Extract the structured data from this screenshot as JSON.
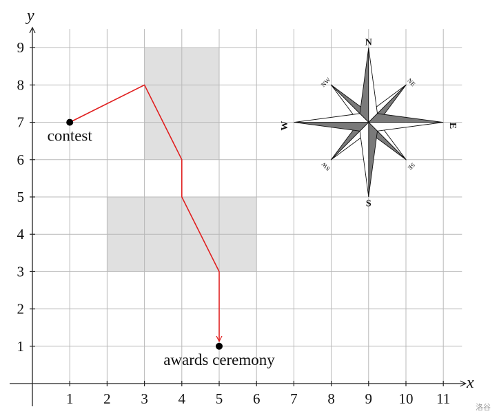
{
  "axes": {
    "x_label": "x",
    "y_label": "y",
    "x_ticks": [
      "1",
      "2",
      "3",
      "4",
      "5",
      "6",
      "7",
      "8",
      "9",
      "10",
      "11"
    ],
    "y_ticks": [
      "1",
      "2",
      "3",
      "4",
      "5",
      "6",
      "7",
      "8",
      "9"
    ],
    "grid": true,
    "xlim": [
      0,
      11.5
    ],
    "ylim": [
      0,
      9.5
    ]
  },
  "shaded_regions": [
    {
      "x": [
        3,
        5
      ],
      "y": [
        6,
        9
      ]
    },
    {
      "x": [
        2,
        6
      ],
      "y": [
        3,
        5
      ]
    }
  ],
  "route": {
    "color": "#e02020",
    "points": [
      [
        1,
        7
      ],
      [
        3,
        8
      ],
      [
        4,
        6
      ],
      [
        4,
        5
      ],
      [
        5,
        3
      ],
      [
        5,
        1
      ]
    ]
  },
  "places": [
    {
      "label": "contest",
      "x": 1,
      "y": 7
    },
    {
      "label": "awards ceremony",
      "x": 5,
      "y": 1
    }
  ],
  "compass": {
    "center": {
      "x": 9,
      "y": 7
    },
    "N": "N",
    "S": "S",
    "E": "E",
    "W": "W",
    "NE": "NE",
    "NW": "NW",
    "SE": "SE",
    "SW": "SW"
  },
  "watermark": "洛谷"
}
